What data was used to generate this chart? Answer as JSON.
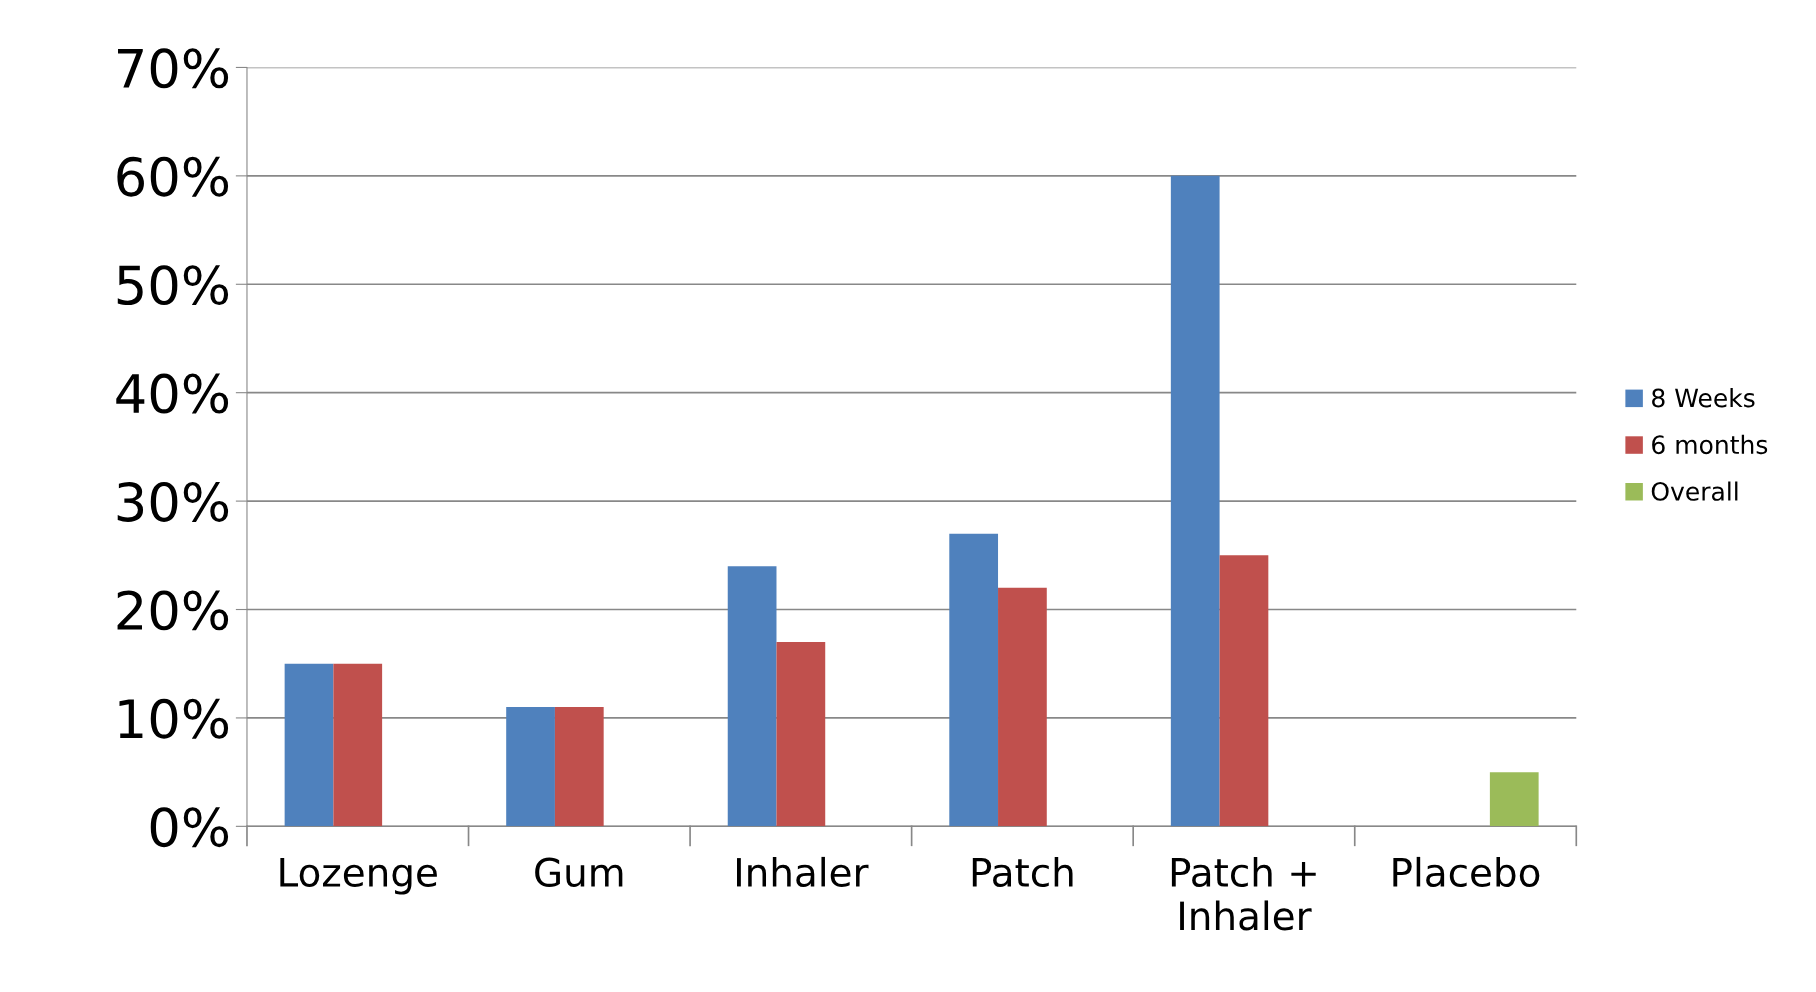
{
  "chart_data": {
    "type": "bar",
    "categories": [
      "Lozenge",
      "Gum",
      "Inhaler",
      "Patch",
      "Patch + Inhaler",
      "Placebo"
    ],
    "series": [
      {
        "name": "8 Weeks",
        "color": "#4f81bd",
        "values": [
          15,
          11,
          24,
          27,
          60,
          null
        ]
      },
      {
        "name": "6 months",
        "color": "#c0504d",
        "values": [
          15,
          11,
          17,
          22,
          25,
          null
        ]
      },
      {
        "name": "Overall",
        "color": "#9bbb59",
        "values": [
          null,
          null,
          null,
          null,
          null,
          5
        ]
      }
    ],
    "ylim": [
      0,
      70
    ],
    "yticks": [
      {
        "value": 0,
        "label": "0%"
      },
      {
        "value": 10,
        "label": "10%"
      },
      {
        "value": 20,
        "label": "20%"
      },
      {
        "value": 30,
        "label": "30%"
      },
      {
        "value": 40,
        "label": "40%"
      },
      {
        "value": 50,
        "label": "50%"
      },
      {
        "value": 60,
        "label": "60%"
      },
      {
        "value": 70,
        "label": "70%"
      }
    ],
    "grid": "y",
    "legend": "right"
  }
}
